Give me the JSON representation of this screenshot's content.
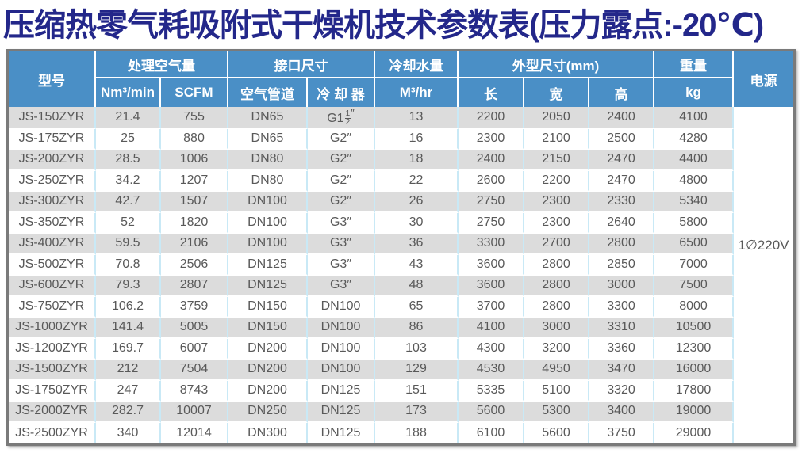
{
  "title": {
    "text": "压缩热零气耗吸附式干燥机技术参数表(压力露点:-20℃)"
  },
  "table": {
    "header": {
      "model": "型号",
      "power": "电源",
      "groups": [
        {
          "label": "处理空气量",
          "span": 2
        },
        {
          "label": "接口尺寸",
          "span": 2
        },
        {
          "label": "冷却水量",
          "span": 1
        },
        {
          "label": "外型尺寸(mm)",
          "span": 3
        },
        {
          "label": "重量",
          "span": 1
        }
      ],
      "sub": [
        "Nm³/min",
        "SCFM",
        "空气管道",
        "冷 却 器",
        "M³/hr",
        "长",
        "宽",
        "高",
        "kg"
      ]
    },
    "power_value": "1∅220V",
    "column_keys": [
      "model",
      "nm3-per-min",
      "scfm",
      "air-pipe",
      "cooler",
      "cooling-water",
      "length",
      "width",
      "height",
      "weight-kg"
    ],
    "rows": [
      [
        "JS-150ZYR",
        "21.4",
        "755",
        "DN65",
        "G1 1/2″",
        "13",
        "2200",
        "2050",
        "2400",
        "4100"
      ],
      [
        "JS-175ZYR",
        "25",
        "880",
        "DN65",
        "G2″",
        "16",
        "2300",
        "2100",
        "2500",
        "4280"
      ],
      [
        "JS-200ZYR",
        "28.5",
        "1006",
        "DN80",
        "G2″",
        "18",
        "2400",
        "2150",
        "2470",
        "4400"
      ],
      [
        "JS-250ZYR",
        "34.2",
        "1207",
        "DN80",
        "G2″",
        "22",
        "2600",
        "2200",
        "2470",
        "4800"
      ],
      [
        "JS-300ZYR",
        "42.7",
        "1507",
        "DN100",
        "G2″",
        "26",
        "2750",
        "2300",
        "2330",
        "5340"
      ],
      [
        "JS-350ZYR",
        "52",
        "1820",
        "DN100",
        "G3″",
        "30",
        "2750",
        "2300",
        "2640",
        "5800"
      ],
      [
        "JS-400ZYR",
        "59.5",
        "2106",
        "DN100",
        "G3″",
        "36",
        "3300",
        "2700",
        "2800",
        "6500"
      ],
      [
        "JS-500ZYR",
        "70.8",
        "2506",
        "DN125",
        "G3″",
        "43",
        "3600",
        "2800",
        "2850",
        "7000"
      ],
      [
        "JS-600ZYR",
        "79.3",
        "2807",
        "DN125",
        "G3″",
        "48",
        "3600",
        "2800",
        "3000",
        "7500"
      ],
      [
        "JS-750ZYR",
        "106.2",
        "3759",
        "DN150",
        "DN100",
        "65",
        "3700",
        "2800",
        "3300",
        "8000"
      ],
      [
        "JS-1000ZYR",
        "141.4",
        "5005",
        "DN150",
        "DN100",
        "86",
        "4100",
        "3000",
        "3310",
        "10500"
      ],
      [
        "JS-1200ZYR",
        "169.7",
        "6007",
        "DN200",
        "DN100",
        "103",
        "4300",
        "3200",
        "3360",
        "12300"
      ],
      [
        "JS-1500ZYR",
        "212",
        "7504",
        "DN200",
        "DN100",
        "129",
        "4530",
        "4950",
        "3470",
        "16000"
      ],
      [
        "JS-1750ZYR",
        "247",
        "8743",
        "DN200",
        "DN125",
        "151",
        "5335",
        "5100",
        "3320",
        "17800"
      ],
      [
        "JS-2000ZYR",
        "282.7",
        "10007",
        "DN250",
        "DN125",
        "173",
        "5600",
        "5300",
        "3400",
        "19000"
      ],
      [
        "JS-2500ZYR",
        "340",
        "12014",
        "DN300",
        "DN125",
        "188",
        "6100",
        "5600",
        "3750",
        "29000"
      ]
    ]
  },
  "colors": {
    "title-color": "#23278a",
    "header-bg": "#4a8fc6",
    "row-gray": "#dcdcdc",
    "grid-blue": "#c9e9f6",
    "border-gray": "#7a7a7a",
    "body-text": "#595959"
  }
}
